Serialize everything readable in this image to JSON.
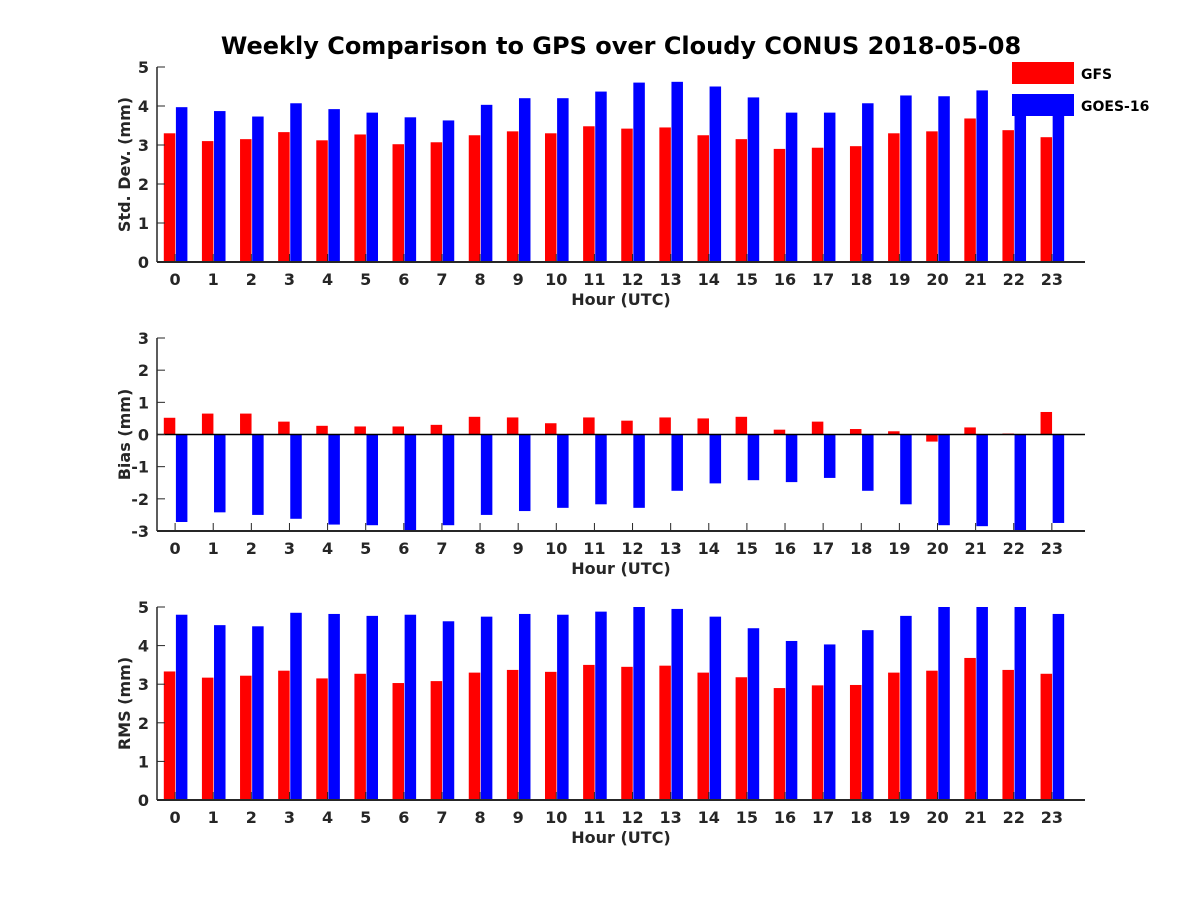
{
  "figure_title": "Weekly Comparison to GPS over Cloudy CONUS 2018-05-08",
  "legend": {
    "entries": [
      {
        "label": "GFS",
        "color": "#ff0000"
      },
      {
        "label": "GOES-16",
        "color": "#0000ff"
      }
    ],
    "placement": "top-right"
  },
  "chart_data": [
    {
      "type": "bar",
      "title": "Weekly Comparison to GPS over Cloudy CONUS 2018-05-08",
      "xlabel": "Hour (UTC)",
      "ylabel": "Std. Dev. (mm)",
      "ylim": [
        0,
        5
      ],
      "yticks": [
        "0",
        "1",
        "2",
        "3",
        "4",
        "5"
      ],
      "categories": [
        "0",
        "1",
        "2",
        "3",
        "4",
        "5",
        "6",
        "7",
        "8",
        "9",
        "10",
        "11",
        "12",
        "13",
        "14",
        "15",
        "16",
        "17",
        "18",
        "19",
        "20",
        "21",
        "22",
        "23"
      ],
      "series": [
        {
          "name": "GFS",
          "color": "#ff0000",
          "values": [
            3.3,
            3.1,
            3.15,
            3.33,
            3.12,
            3.27,
            3.02,
            3.07,
            3.25,
            3.35,
            3.3,
            3.48,
            3.42,
            3.45,
            3.25,
            3.15,
            2.9,
            2.93,
            2.97,
            3.3,
            3.35,
            3.68,
            3.38,
            3.2
          ]
        },
        {
          "name": "GOES-16",
          "color": "#0000ff",
          "values": [
            3.97,
            3.87,
            3.73,
            4.07,
            3.92,
            3.83,
            3.71,
            3.63,
            4.03,
            4.2,
            4.2,
            4.37,
            4.6,
            4.62,
            4.5,
            4.22,
            3.83,
            3.83,
            4.07,
            4.27,
            4.25,
            4.4,
            4.17,
            4.02
          ]
        }
      ]
    },
    {
      "type": "bar",
      "title": "",
      "xlabel": "Hour (UTC)",
      "ylabel": "Bias (mm)",
      "ylim": [
        -3,
        3
      ],
      "yticks": [
        "-3",
        "-2",
        "-1",
        "0",
        "1",
        "2",
        "3"
      ],
      "categories": [
        "0",
        "1",
        "2",
        "3",
        "4",
        "5",
        "6",
        "7",
        "8",
        "9",
        "10",
        "11",
        "12",
        "13",
        "14",
        "15",
        "16",
        "17",
        "18",
        "19",
        "20",
        "21",
        "22",
        "23"
      ],
      "series": [
        {
          "name": "GFS",
          "color": "#ff0000",
          "values": [
            0.52,
            0.65,
            0.65,
            0.4,
            0.27,
            0.25,
            0.25,
            0.3,
            0.55,
            0.53,
            0.35,
            0.53,
            0.43,
            0.53,
            0.5,
            0.55,
            0.15,
            0.4,
            0.17,
            0.1,
            -0.22,
            0.22,
            0.03,
            0.7
          ]
        },
        {
          "name": "GOES-16",
          "color": "#0000ff",
          "values": [
            -2.72,
            -2.42,
            -2.5,
            -2.62,
            -2.8,
            -2.82,
            -3.0,
            -2.82,
            -2.5,
            -2.38,
            -2.28,
            -2.17,
            -2.28,
            -1.75,
            -1.52,
            -1.42,
            -1.48,
            -1.35,
            -1.75,
            -2.17,
            -2.82,
            -2.85,
            -3.0,
            -2.75
          ]
        }
      ]
    },
    {
      "type": "bar",
      "title": "",
      "xlabel": "Hour (UTC)",
      "ylabel": "RMS (mm)",
      "ylim": [
        0,
        5
      ],
      "yticks": [
        "0",
        "1",
        "2",
        "3",
        "4",
        "5"
      ],
      "categories": [
        "0",
        "1",
        "2",
        "3",
        "4",
        "5",
        "6",
        "7",
        "8",
        "9",
        "10",
        "11",
        "12",
        "13",
        "14",
        "15",
        "16",
        "17",
        "18",
        "19",
        "20",
        "21",
        "22",
        "23"
      ],
      "series": [
        {
          "name": "GFS",
          "color": "#ff0000",
          "values": [
            3.33,
            3.17,
            3.22,
            3.35,
            3.15,
            3.27,
            3.03,
            3.08,
            3.3,
            3.37,
            3.32,
            3.5,
            3.45,
            3.48,
            3.3,
            3.18,
            2.9,
            2.97,
            2.98,
            3.3,
            3.35,
            3.68,
            3.37,
            3.27
          ]
        },
        {
          "name": "GOES-16",
          "color": "#0000ff",
          "values": [
            4.8,
            4.53,
            4.5,
            4.85,
            4.82,
            4.77,
            4.8,
            4.63,
            4.75,
            4.82,
            4.8,
            4.88,
            5.0,
            4.95,
            4.75,
            4.45,
            4.12,
            4.03,
            4.4,
            4.77,
            5.0,
            5.0,
            5.0,
            4.82
          ]
        }
      ]
    }
  ]
}
